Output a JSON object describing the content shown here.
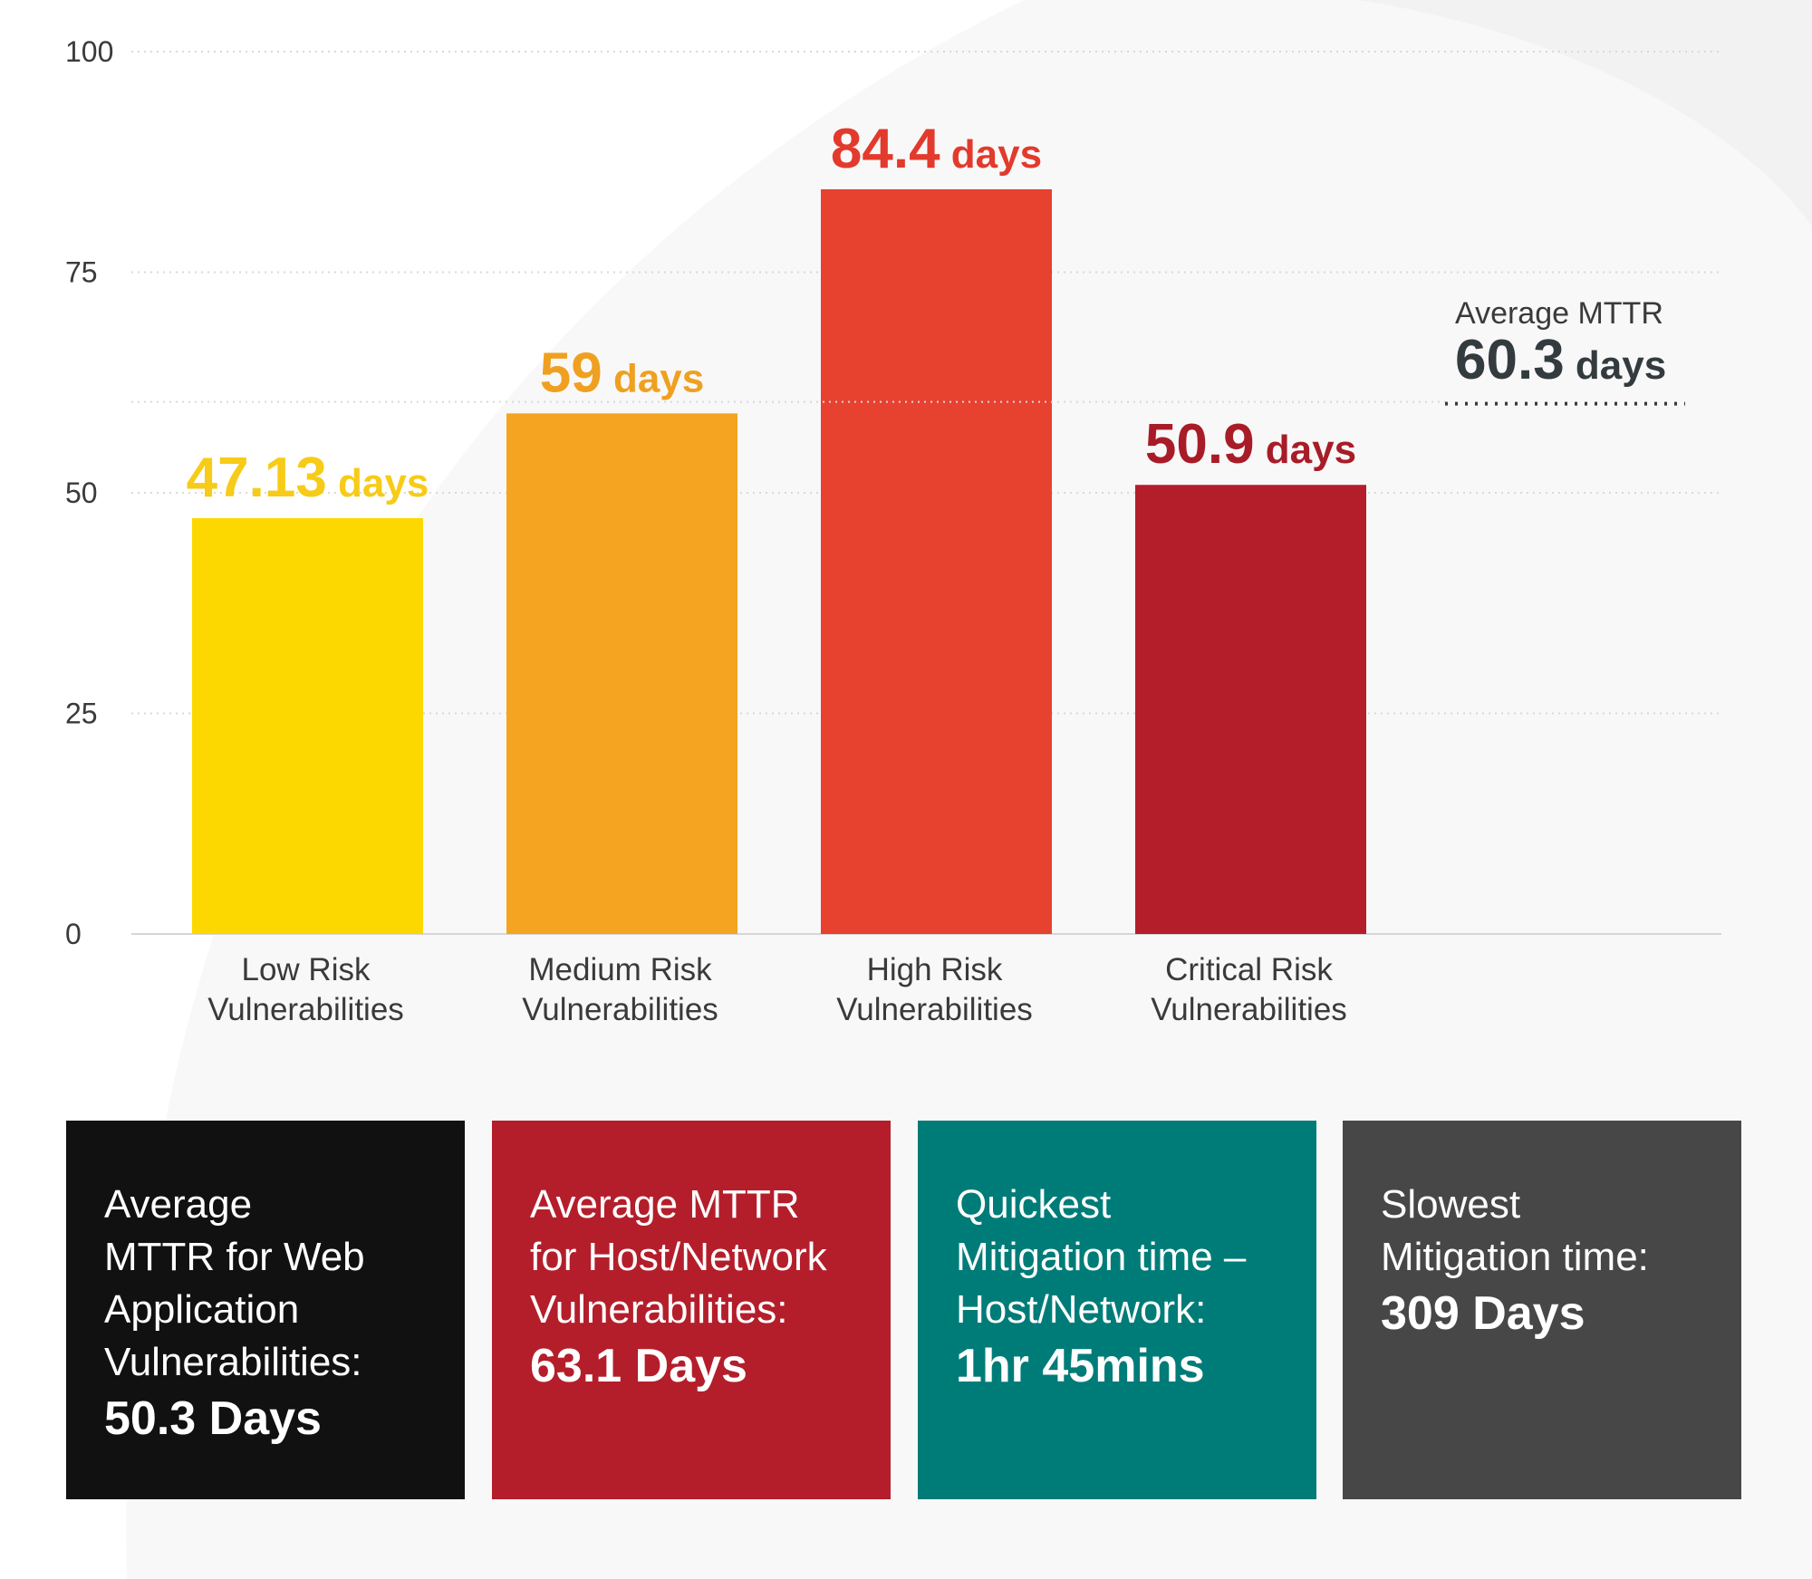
{
  "chart_data": {
    "type": "bar",
    "categories": [
      [
        "Low Risk",
        "Vulnerabilities"
      ],
      [
        "Medium Risk",
        "Vulnerabilities"
      ],
      [
        "High Risk",
        "Vulnerabilities"
      ],
      [
        "Critical Risk",
        "Vulnerabilities"
      ]
    ],
    "values": [
      47.13,
      59,
      84.4,
      50.9
    ],
    "value_labels": [
      "47.13",
      "59",
      "84.4",
      "50.9"
    ],
    "value_unit": "days",
    "colors": [
      "#fcd800",
      "#f4a420",
      "#e74130",
      "#b41e2b"
    ],
    "label_colors": [
      "#f7cb17",
      "#f0a020",
      "#e23a2c",
      "#a81c28"
    ],
    "ylim": [
      0,
      100
    ],
    "yticks": [
      0,
      25,
      50,
      75,
      100
    ],
    "grid": true,
    "reference_line": {
      "label": "Average MTTR",
      "value": 60.3,
      "value_label": "60.3",
      "unit": "days",
      "color": "#333b3f"
    }
  },
  "cards": [
    {
      "text": "Average\nMTTR for Web\nApplication\nVulnerabilities:",
      "value": "50.3 Days",
      "color": "#111111"
    },
    {
      "text": "Average MTTR\nfor Host/Network\nVulnerabilities:",
      "value": "63.1 Days",
      "color": "#b41e2b"
    },
    {
      "text": "Quickest\nMitigation time –\nHost/Network:",
      "value": "1hr 45mins",
      "color": "#007c78"
    },
    {
      "text": "Slowest\nMitigation time:",
      "value": "309 Days",
      "color": "#474747"
    }
  ]
}
